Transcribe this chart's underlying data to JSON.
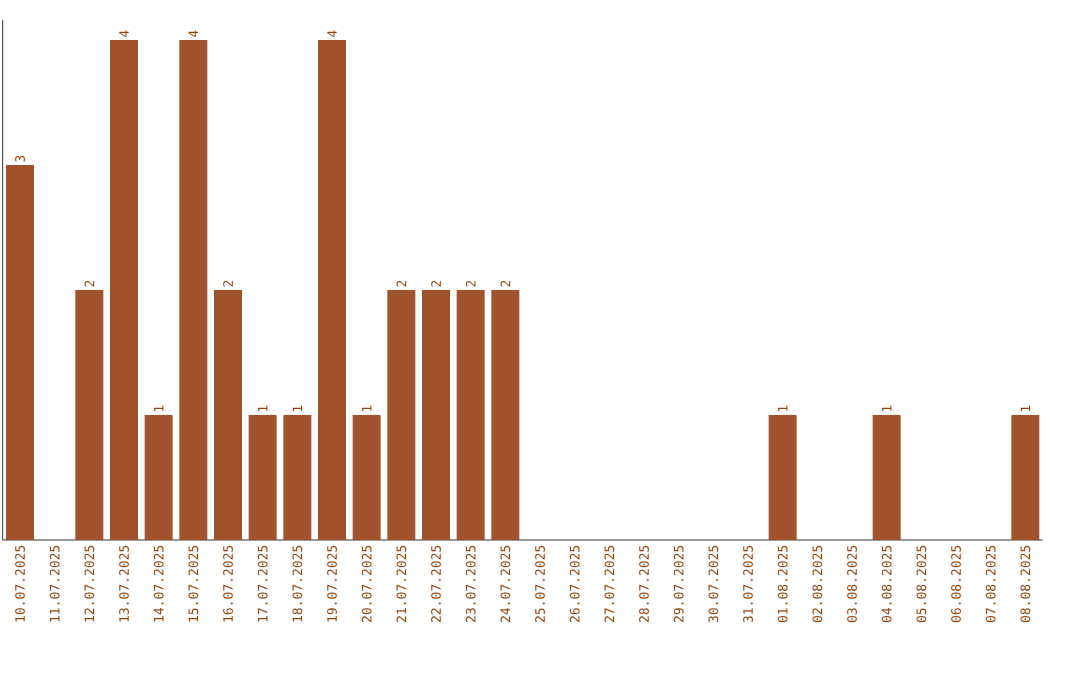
{
  "chart_data": {
    "type": "bar",
    "categories": [
      "10.07.2025",
      "11.07.2025",
      "12.07.2025",
      "13.07.2025",
      "14.07.2025",
      "15.07.2025",
      "16.07.2025",
      "17.07.2025",
      "18.07.2025",
      "19.07.2025",
      "20.07.2025",
      "21.07.2025",
      "22.07.2025",
      "23.07.2025",
      "24.07.2025",
      "25.07.2025",
      "26.07.2025",
      "27.07.2025",
      "28.07.2025",
      "29.07.2025",
      "30.07.2025",
      "31.07.2025",
      "01.08.2025",
      "02.08.2025",
      "03.08.2025",
      "04.08.2025",
      "05.08.2025",
      "06.08.2025",
      "07.08.2025",
      "08.08.2025"
    ],
    "values": [
      3,
      0,
      2,
      4,
      1,
      4,
      2,
      1,
      1,
      4,
      1,
      2,
      2,
      2,
      2,
      0,
      0,
      0,
      0,
      0,
      0,
      0,
      1,
      0,
      0,
      1,
      0,
      0,
      0,
      1
    ],
    "value_labels": [
      "3",
      null,
      "2",
      "4",
      "1",
      "4",
      "2",
      "1",
      "1",
      "4",
      "1",
      "2",
      "2",
      "2",
      "2",
      null,
      null,
      null,
      null,
      null,
      null,
      null,
      "1",
      null,
      null,
      "1",
      null,
      null,
      null,
      "1"
    ],
    "color": "#a0522d",
    "tick_labels": "x"
  }
}
